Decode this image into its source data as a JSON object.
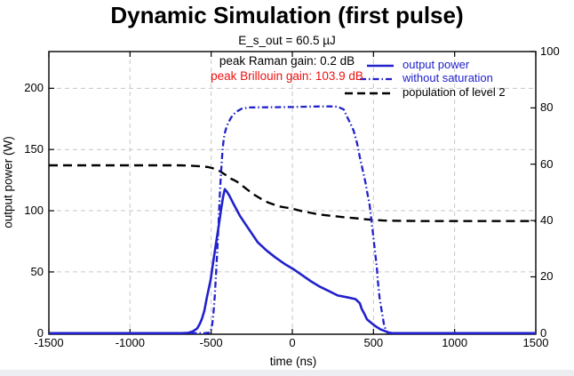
{
  "chart_data": {
    "type": "line",
    "title": "Dynamic Simulation (first pulse)",
    "subtitle": "E_s_out = 60.5 µJ",
    "annotations": [
      {
        "text": "peak Raman gain: 0.2 dB",
        "color": "#000000"
      },
      {
        "text": "peak Brillouin gain: 103.9 dB",
        "color": "#ee1111"
      }
    ],
    "xlabel": "time (ns)",
    "ylabel_left": "output power (W)",
    "xlim": [
      -1500,
      1500
    ],
    "ylim_left": [
      0,
      230
    ],
    "ylim_right": [
      0,
      100
    ],
    "x_ticks": [
      -1500,
      -1000,
      -500,
      0,
      500,
      1000,
      1500
    ],
    "y_ticks_left": [
      0,
      50,
      100,
      150,
      200
    ],
    "y_ticks_right": [
      0,
      20,
      40,
      60,
      80,
      100
    ],
    "grid": true,
    "grid_color": "#c6c6c6",
    "legend_position": "top-right",
    "series": [
      {
        "name": "output power",
        "color": "#2121cc",
        "style": "solid",
        "axis": "left",
        "points": [
          [
            -1500,
            0
          ],
          [
            -680,
            0
          ],
          [
            -640,
            0.3
          ],
          [
            -612,
            1.5
          ],
          [
            -586,
            3.9
          ],
          [
            -570,
            7.6
          ],
          [
            -556,
            12
          ],
          [
            -542,
            18.4
          ],
          [
            -526,
            29.4
          ],
          [
            -503,
            43.7
          ],
          [
            -487,
            58.4
          ],
          [
            -471,
            72.8
          ],
          [
            -454,
            87.3
          ],
          [
            -438,
            101.8
          ],
          [
            -427,
            111
          ],
          [
            -416,
            117.6
          ],
          [
            -403,
            115.5
          ],
          [
            -389,
            112.6
          ],
          [
            -361,
            105.2
          ],
          [
            -323,
            95.8
          ],
          [
            -268,
            85
          ],
          [
            -213,
            74.2
          ],
          [
            -159,
            67.5
          ],
          [
            -104,
            61.8
          ],
          [
            -49,
            56.7
          ],
          [
            5,
            52.4
          ],
          [
            60,
            47.3
          ],
          [
            115,
            42.3
          ],
          [
            170,
            37.9
          ],
          [
            224,
            34.5
          ],
          [
            279,
            30.8
          ],
          [
            334,
            29.4
          ],
          [
            389,
            27.8
          ],
          [
            416,
            24.4
          ],
          [
            427,
            20
          ],
          [
            445,
            15.5
          ],
          [
            460,
            11.3
          ],
          [
            487,
            8.3
          ],
          [
            514,
            5.5
          ],
          [
            542,
            3.2
          ],
          [
            569,
            1.8
          ],
          [
            592,
            0.6
          ],
          [
            615,
            0
          ],
          [
            1500,
            0
          ]
        ]
      },
      {
        "name": "without saturation",
        "color": "#2121cc",
        "style": "dash-dot",
        "axis": "left",
        "points": [
          [
            -1500,
            0
          ],
          [
            -540,
            0
          ],
          [
            -510,
            0.5
          ],
          [
            -502,
            2
          ],
          [
            -494,
            7
          ],
          [
            -486,
            16
          ],
          [
            -478,
            30
          ],
          [
            -470,
            48
          ],
          [
            -462,
            68
          ],
          [
            -455,
            88
          ],
          [
            -449,
            107
          ],
          [
            -443,
            123
          ],
          [
            -436,
            138
          ],
          [
            -430,
            150
          ],
          [
            -422,
            159
          ],
          [
            -414,
            164.5
          ],
          [
            -406,
            168
          ],
          [
            -394,
            172
          ],
          [
            -378,
            176
          ],
          [
            -356,
            179.5
          ],
          [
            -339,
            181.3
          ],
          [
            -312,
            183.3
          ],
          [
            -268,
            184.3
          ],
          [
            -159,
            184.5
          ],
          [
            -60,
            184.6
          ],
          [
            0,
            184.7
          ],
          [
            60,
            184.9
          ],
          [
            150,
            185.1
          ],
          [
            224,
            185.2
          ],
          [
            279,
            185
          ],
          [
            317,
            182.7
          ],
          [
            334,
            177.6
          ],
          [
            356,
            171.8
          ],
          [
            378,
            165.4
          ],
          [
            400,
            154.4
          ],
          [
            416,
            143.6
          ],
          [
            438,
            130.7
          ],
          [
            452,
            122
          ],
          [
            460,
            116
          ],
          [
            476,
            105.2
          ],
          [
            487,
            92.3
          ],
          [
            498,
            79.9
          ],
          [
            509,
            66.8
          ],
          [
            520,
            54.7
          ],
          [
            527,
            42.3
          ],
          [
            537,
            29.4
          ],
          [
            553,
            16.3
          ],
          [
            564,
            7.6
          ],
          [
            576,
            2.5
          ],
          [
            588,
            0
          ],
          [
            1500,
            0
          ]
        ]
      },
      {
        "name": "population of level 2",
        "color": "#000000",
        "style": "dashed",
        "axis": "right",
        "points": [
          [
            -1500,
            59.6
          ],
          [
            -700,
            59.6
          ],
          [
            -640,
            59.5
          ],
          [
            -580,
            59.3
          ],
          [
            -520,
            59.0
          ],
          [
            -480,
            58.4
          ],
          [
            -449,
            57.6
          ],
          [
            -420,
            56.5
          ],
          [
            -400,
            55.8
          ],
          [
            -380,
            54.9
          ],
          [
            -360,
            54.4
          ],
          [
            -339,
            53.7
          ],
          [
            -300,
            52.0
          ],
          [
            -260,
            50.2
          ],
          [
            -230,
            49.0
          ],
          [
            -190,
            47.6
          ],
          [
            -150,
            46.4
          ],
          [
            -120,
            45.8
          ],
          [
            -80,
            45.0
          ],
          [
            -40,
            44.6
          ],
          [
            -5,
            44.3
          ],
          [
            40,
            43.6
          ],
          [
            80,
            43.1
          ],
          [
            115,
            42.7
          ],
          [
            160,
            42.2
          ],
          [
            220,
            41.8
          ],
          [
            279,
            41.4
          ],
          [
            330,
            41.1
          ],
          [
            389,
            40.8
          ],
          [
            440,
            40.5
          ],
          [
            498,
            40.2
          ],
          [
            560,
            40.0
          ],
          [
            660,
            39.9
          ],
          [
            800,
            39.8
          ],
          [
            1000,
            39.8
          ],
          [
            1500,
            39.8
          ]
        ]
      }
    ]
  }
}
